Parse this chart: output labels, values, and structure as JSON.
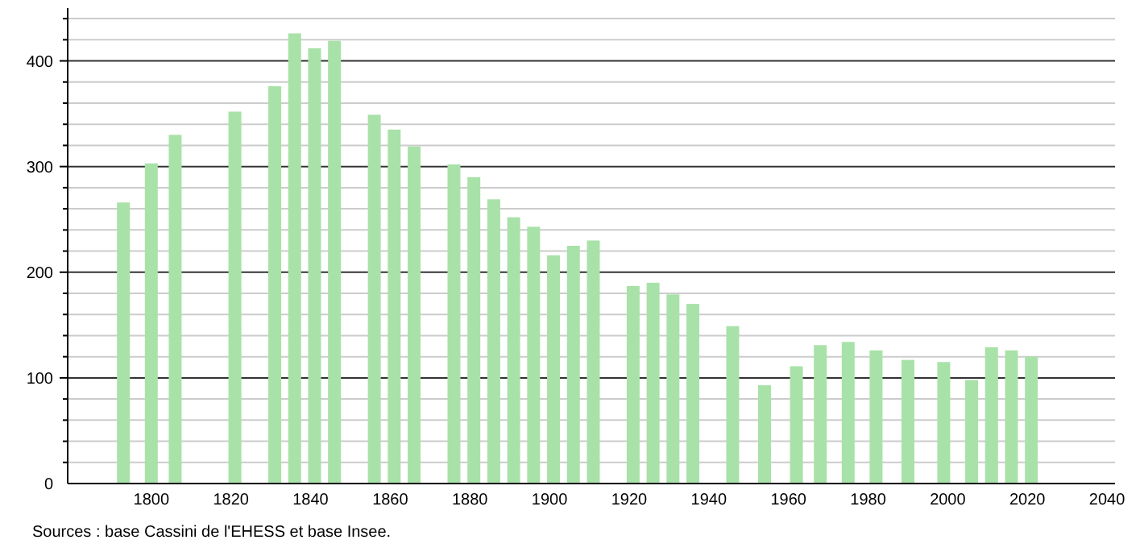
{
  "chart_data": {
    "type": "bar",
    "color": "#a8e2a8",
    "x": [
      1793,
      1800,
      1806,
      1821,
      1831,
      1836,
      1841,
      1846,
      1856,
      1861,
      1866,
      1876,
      1881,
      1886,
      1891,
      1896,
      1901,
      1906,
      1911,
      1921,
      1926,
      1931,
      1936,
      1946,
      1954,
      1962,
      1968,
      1975,
      1982,
      1990,
      1999,
      2006,
      2011,
      2016,
      2021
    ],
    "values": [
      266,
      303,
      330,
      352,
      376,
      426,
      412,
      419,
      349,
      335,
      319,
      302,
      290,
      269,
      252,
      243,
      216,
      225,
      230,
      187,
      190,
      179,
      170,
      149,
      93,
      111,
      131,
      134,
      126,
      117,
      115,
      98,
      129,
      126,
      120
    ],
    "xlim": [
      1779,
      2042
    ],
    "xticks": [
      1800,
      1820,
      1840,
      1860,
      1880,
      1900,
      1920,
      1940,
      1960,
      1980,
      2000,
      2020,
      2040
    ],
    "ylim": [
      0,
      450
    ],
    "yticks": [
      0,
      {
        "value": 20,
        "label": null
      },
      {
        "value": 40,
        "label": null
      },
      {
        "value": 60,
        "label": null
      },
      {
        "value": 80,
        "label": null
      },
      100,
      {
        "value": 120,
        "label": null
      },
      {
        "value": 140,
        "label": null
      },
      {
        "value": 160,
        "label": null
      },
      {
        "value": 180,
        "label": null
      },
      200,
      {
        "value": 220,
        "label": null
      },
      {
        "value": 240,
        "label": null
      },
      {
        "value": 260,
        "label": null
      },
      {
        "value": 280,
        "label": null
      },
      300,
      {
        "value": 320,
        "label": null
      },
      {
        "value": 340,
        "label": null
      },
      {
        "value": 360,
        "label": null
      },
      {
        "value": 380,
        "label": null
      },
      400,
      {
        "value": 420,
        "label": null
      },
      {
        "value": 440,
        "label": null
      }
    ],
    "grid": "y",
    "annotations": [
      "Sources : base Cassini de l'EHESS et base Insee."
    ]
  }
}
